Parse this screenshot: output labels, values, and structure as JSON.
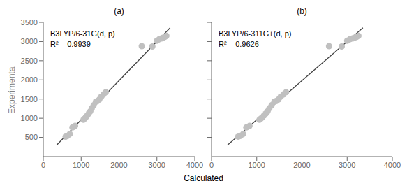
{
  "chart_data": [
    {
      "type": "scatter",
      "title": "(a)",
      "x_label": "Calculated",
      "y_label": "Experimental",
      "annotations": [
        "B3LYP/6-31G(d, p)",
        "R² = 0.9939"
      ],
      "series": [
        {
          "type": "line",
          "color": "#404040",
          "x": [
            350,
            3350
          ],
          "values": [
            295.41,
            3357.49
          ]
        },
        {
          "type": "scatter",
          "color": "#c0c0c0",
          "x": [
            590,
            640,
            700,
            770,
            840,
            1060,
            1090,
            1120,
            1160,
            1200,
            1240,
            1280,
            1330,
            1390,
            1430,
            1480,
            1530,
            1590,
            1650,
            2600,
            2880,
            3000,
            3060,
            3120,
            3160,
            3210,
            3250
          ],
          "values": [
            520,
            540,
            590,
            760,
            800,
            960,
            990,
            1020,
            1070,
            1120,
            1180,
            1260,
            1340,
            1430,
            1450,
            1490,
            1560,
            1620,
            1680,
            2880,
            2870,
            3020,
            3060,
            3080,
            3100,
            3120,
            3150
          ]
        }
      ],
      "xlim": [
        0,
        4000
      ],
      "ylim": [
        0,
        3500
      ],
      "xticks": [
        0,
        1000,
        2000,
        3000,
        4000
      ],
      "yticks": [
        500,
        1000,
        1500,
        2000,
        2500,
        3000,
        3500
      ],
      "grid": false
    },
    {
      "type": "scatter",
      "title": "(b)",
      "annotations": [
        "B3LYP/6-311G+(d, p)",
        "R² = 0.9626"
      ],
      "series": [
        {
          "type": "line",
          "color": "#404040",
          "x": [
            350,
            3350
          ],
          "values": [
            295.41,
            3357.49
          ]
        },
        {
          "type": "scatter",
          "color": "#c0c0c0",
          "x": [
            590,
            640,
            700,
            770,
            840,
            1060,
            1090,
            1120,
            1160,
            1200,
            1240,
            1280,
            1330,
            1390,
            1430,
            1480,
            1530,
            1590,
            1650,
            2600,
            2880,
            3000,
            3060,
            3120,
            3160,
            3210,
            3250
          ],
          "values": [
            520,
            540,
            590,
            760,
            800,
            960,
            990,
            1020,
            1070,
            1120,
            1180,
            1260,
            1340,
            1430,
            1450,
            1490,
            1560,
            1620,
            1680,
            2880,
            2870,
            3020,
            3060,
            3080,
            3100,
            3120,
            3150
          ]
        }
      ],
      "xlim": [
        0,
        4000
      ],
      "ylim": [
        0,
        3500
      ],
      "xticks": [
        0,
        1000,
        2000,
        3000,
        4000
      ],
      "yticks": [
        500,
        1000,
        1500,
        2000,
        2500,
        3000,
        3500
      ],
      "grid": false,
      "tick_labels": "x"
    }
  ]
}
